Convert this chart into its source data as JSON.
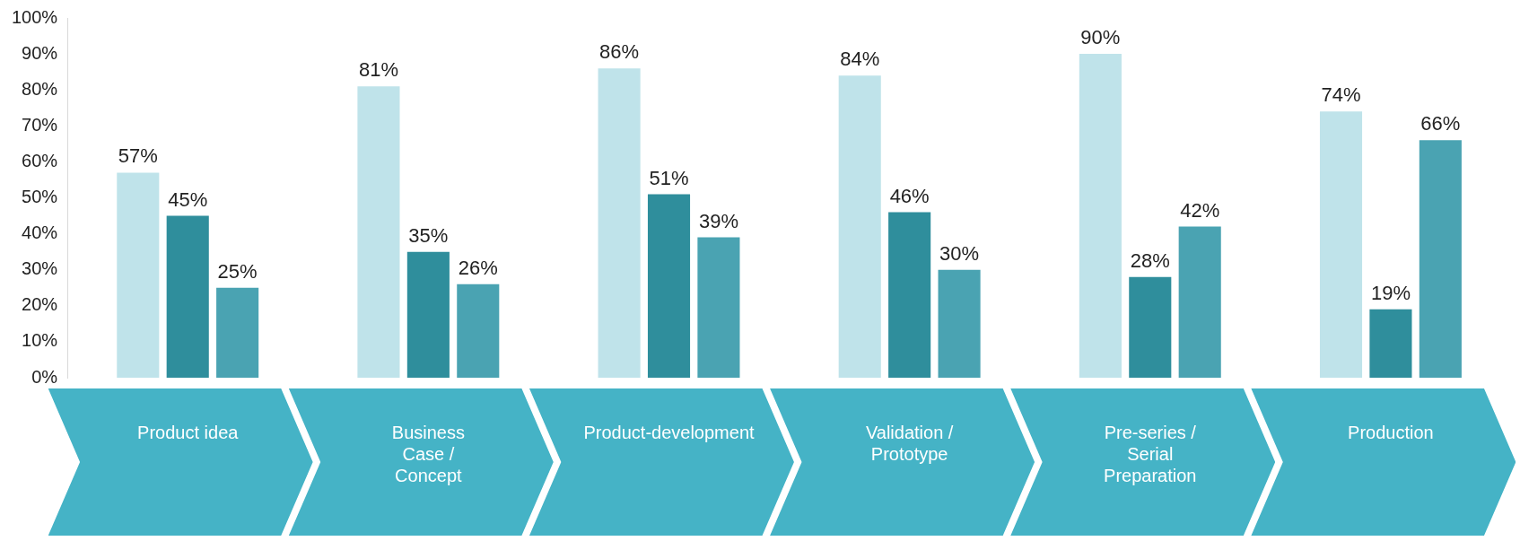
{
  "chart_data": {
    "type": "bar",
    "categories": [
      "Product idea",
      "Business Case / Concept",
      "Product-development",
      "Validation / Prototype",
      "Pre-series / Serial Preparation",
      "Production"
    ],
    "series": [
      {
        "color": "#bfe3ea",
        "values": [
          57,
          81,
          86,
          84,
          90,
          74
        ],
        "value_labels": [
          "57%",
          "81%",
          "86%",
          "84%",
          "90%",
          "74%"
        ]
      },
      {
        "color": "#2f8e9c",
        "values": [
          45,
          35,
          51,
          46,
          28,
          19
        ],
        "value_labels": [
          "45%",
          "35%",
          "51%",
          "46%",
          "28%",
          "19%"
        ]
      },
      {
        "color": "#4aa3b2",
        "values": [
          25,
          26,
          39,
          30,
          42,
          66
        ],
        "value_labels": [
          "25%",
          "26%",
          "39%",
          "30%",
          "42%",
          "66%"
        ]
      }
    ],
    "ylim": [
      0,
      100
    ],
    "yticks": [
      {
        "value": 0,
        "label": "0%"
      },
      {
        "value": 10,
        "label": "10%"
      },
      {
        "value": 20,
        "label": "20%"
      },
      {
        "value": 30,
        "label": "30%"
      },
      {
        "value": 40,
        "label": "40%"
      },
      {
        "value": 50,
        "label": "50%"
      },
      {
        "value": 60,
        "label": "60%"
      },
      {
        "value": 70,
        "label": "70%"
      },
      {
        "value": 80,
        "label": "80%"
      },
      {
        "value": 90,
        "label": "90%"
      },
      {
        "value": 100,
        "label": "100%"
      }
    ],
    "grid": false,
    "legend": false
  }
}
